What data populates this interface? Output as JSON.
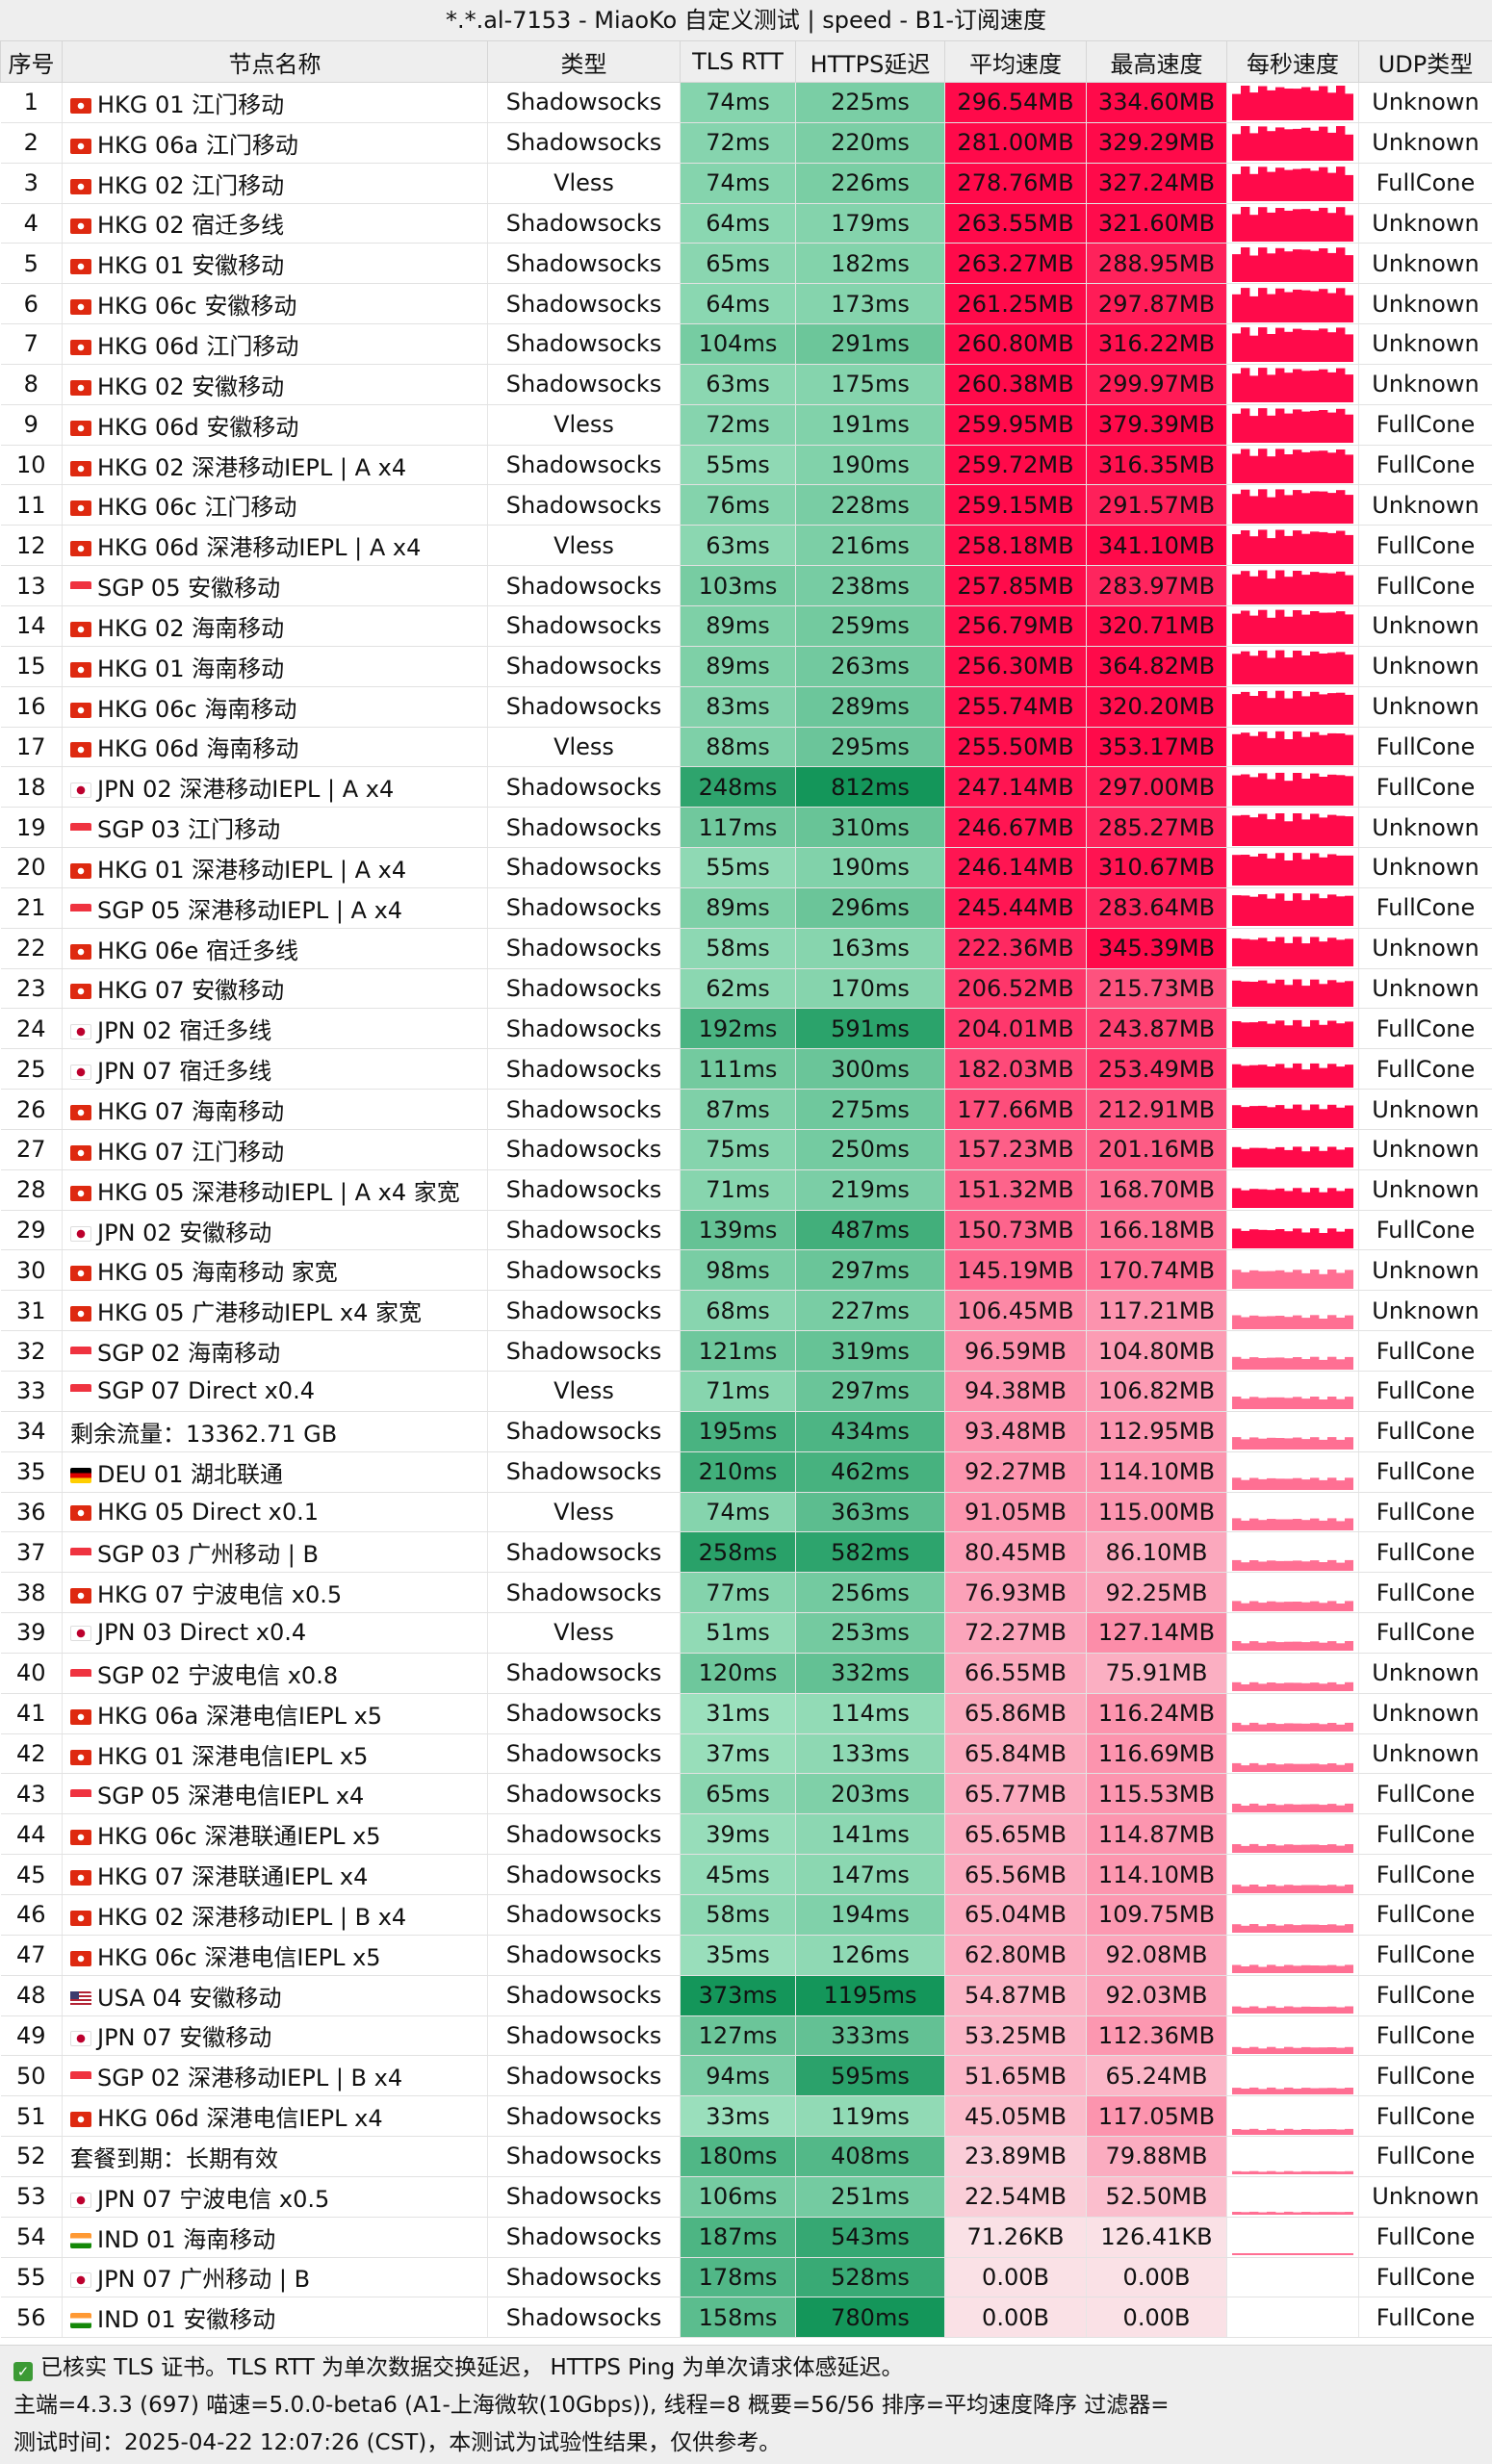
{
  "title": "*.*.al-7153 - MiaoKo 自定义测试 | speed - B1-订阅速度",
  "headers": [
    "序号",
    "节点名称",
    "类型",
    "TLS RTT",
    "HTTPS延迟",
    "平均速度",
    "最高速度",
    "每秒速度",
    "UDP类型"
  ],
  "rows": [
    {
      "idx": "1",
      "flag": "hk",
      "name": "HKG 01 江门移动",
      "type": "Shadowsocks",
      "tls": "74ms",
      "https": "225ms",
      "avg": "296.54MB",
      "max": "334.60MB",
      "udp": "Unknown"
    },
    {
      "idx": "2",
      "flag": "hk",
      "name": "HKG 06a 江门移动",
      "type": "Shadowsocks",
      "tls": "72ms",
      "https": "220ms",
      "avg": "281.00MB",
      "max": "329.29MB",
      "udp": "Unknown"
    },
    {
      "idx": "3",
      "flag": "hk",
      "name": "HKG 02 江门移动",
      "type": "Vless",
      "tls": "74ms",
      "https": "226ms",
      "avg": "278.76MB",
      "max": "327.24MB",
      "udp": "FullCone"
    },
    {
      "idx": "4",
      "flag": "hk",
      "name": "HKG 02 宿迁多线",
      "type": "Shadowsocks",
      "tls": "64ms",
      "https": "179ms",
      "avg": "263.55MB",
      "max": "321.60MB",
      "udp": "Unknown"
    },
    {
      "idx": "5",
      "flag": "hk",
      "name": "HKG 01 安徽移动",
      "type": "Shadowsocks",
      "tls": "65ms",
      "https": "182ms",
      "avg": "263.27MB",
      "max": "288.95MB",
      "udp": "Unknown"
    },
    {
      "idx": "6",
      "flag": "hk",
      "name": "HKG 06c 安徽移动",
      "type": "Shadowsocks",
      "tls": "64ms",
      "https": "173ms",
      "avg": "261.25MB",
      "max": "297.87MB",
      "udp": "Unknown"
    },
    {
      "idx": "7",
      "flag": "hk",
      "name": "HKG 06d 江门移动",
      "type": "Shadowsocks",
      "tls": "104ms",
      "https": "291ms",
      "avg": "260.80MB",
      "max": "316.22MB",
      "udp": "Unknown"
    },
    {
      "idx": "8",
      "flag": "hk",
      "name": "HKG 02 安徽移动",
      "type": "Shadowsocks",
      "tls": "63ms",
      "https": "175ms",
      "avg": "260.38MB",
      "max": "299.97MB",
      "udp": "Unknown"
    },
    {
      "idx": "9",
      "flag": "hk",
      "name": "HKG 06d 安徽移动",
      "type": "Vless",
      "tls": "72ms",
      "https": "191ms",
      "avg": "259.95MB",
      "max": "379.39MB",
      "udp": "FullCone"
    },
    {
      "idx": "10",
      "flag": "hk",
      "name": "HKG 02 深港移动IEPL | A x4",
      "type": "Shadowsocks",
      "tls": "55ms",
      "https": "190ms",
      "avg": "259.72MB",
      "max": "316.35MB",
      "udp": "FullCone"
    },
    {
      "idx": "11",
      "flag": "hk",
      "name": "HKG 06c 江门移动",
      "type": "Shadowsocks",
      "tls": "76ms",
      "https": "228ms",
      "avg": "259.15MB",
      "max": "291.57MB",
      "udp": "Unknown"
    },
    {
      "idx": "12",
      "flag": "hk",
      "name": "HKG 06d 深港移动IEPL | A x4",
      "type": "Vless",
      "tls": "63ms",
      "https": "216ms",
      "avg": "258.18MB",
      "max": "341.10MB",
      "udp": "FullCone"
    },
    {
      "idx": "13",
      "flag": "sg",
      "name": "SGP 05 安徽移动",
      "type": "Shadowsocks",
      "tls": "103ms",
      "https": "238ms",
      "avg": "257.85MB",
      "max": "283.97MB",
      "udp": "FullCone"
    },
    {
      "idx": "14",
      "flag": "hk",
      "name": "HKG 02 海南移动",
      "type": "Shadowsocks",
      "tls": "89ms",
      "https": "259ms",
      "avg": "256.79MB",
      "max": "320.71MB",
      "udp": "Unknown"
    },
    {
      "idx": "15",
      "flag": "hk",
      "name": "HKG 01 海南移动",
      "type": "Shadowsocks",
      "tls": "89ms",
      "https": "263ms",
      "avg": "256.30MB",
      "max": "364.82MB",
      "udp": "Unknown"
    },
    {
      "idx": "16",
      "flag": "hk",
      "name": "HKG 06c 海南移动",
      "type": "Shadowsocks",
      "tls": "83ms",
      "https": "289ms",
      "avg": "255.74MB",
      "max": "320.20MB",
      "udp": "Unknown"
    },
    {
      "idx": "17",
      "flag": "hk",
      "name": "HKG 06d 海南移动",
      "type": "Vless",
      "tls": "88ms",
      "https": "295ms",
      "avg": "255.50MB",
      "max": "353.17MB",
      "udp": "FullCone"
    },
    {
      "idx": "18",
      "flag": "jp",
      "name": "JPN 02 深港移动IEPL | A x4",
      "type": "Shadowsocks",
      "tls": "248ms",
      "https": "812ms",
      "avg": "247.14MB",
      "max": "297.00MB",
      "udp": "FullCone"
    },
    {
      "idx": "19",
      "flag": "sg",
      "name": "SGP 03 江门移动",
      "type": "Shadowsocks",
      "tls": "117ms",
      "https": "310ms",
      "avg": "246.67MB",
      "max": "285.27MB",
      "udp": "Unknown"
    },
    {
      "idx": "20",
      "flag": "hk",
      "name": "HKG 01 深港移动IEPL | A x4",
      "type": "Shadowsocks",
      "tls": "55ms",
      "https": "190ms",
      "avg": "246.14MB",
      "max": "310.67MB",
      "udp": "Unknown"
    },
    {
      "idx": "21",
      "flag": "sg",
      "name": "SGP 05 深港移动IEPL | A x4",
      "type": "Shadowsocks",
      "tls": "89ms",
      "https": "296ms",
      "avg": "245.44MB",
      "max": "283.64MB",
      "udp": "FullCone"
    },
    {
      "idx": "22",
      "flag": "hk",
      "name": "HKG 06e 宿迁多线",
      "type": "Shadowsocks",
      "tls": "58ms",
      "https": "163ms",
      "avg": "222.36MB",
      "max": "345.39MB",
      "udp": "Unknown"
    },
    {
      "idx": "23",
      "flag": "hk",
      "name": "HKG 07 安徽移动",
      "type": "Shadowsocks",
      "tls": "62ms",
      "https": "170ms",
      "avg": "206.52MB",
      "max": "215.73MB",
      "udp": "Unknown"
    },
    {
      "idx": "24",
      "flag": "jp",
      "name": "JPN 02 宿迁多线",
      "type": "Shadowsocks",
      "tls": "192ms",
      "https": "591ms",
      "avg": "204.01MB",
      "max": "243.87MB",
      "udp": "FullCone"
    },
    {
      "idx": "25",
      "flag": "jp",
      "name": "JPN 07 宿迁多线",
      "type": "Shadowsocks",
      "tls": "111ms",
      "https": "300ms",
      "avg": "182.03MB",
      "max": "253.49MB",
      "udp": "FullCone"
    },
    {
      "idx": "26",
      "flag": "hk",
      "name": "HKG 07 海南移动",
      "type": "Shadowsocks",
      "tls": "87ms",
      "https": "275ms",
      "avg": "177.66MB",
      "max": "212.91MB",
      "udp": "Unknown"
    },
    {
      "idx": "27",
      "flag": "hk",
      "name": "HKG 07 江门移动",
      "type": "Shadowsocks",
      "tls": "75ms",
      "https": "250ms",
      "avg": "157.23MB",
      "max": "201.16MB",
      "udp": "Unknown"
    },
    {
      "idx": "28",
      "flag": "hk",
      "name": "HKG 05 深港移动IEPL | A x4 家宽",
      "type": "Shadowsocks",
      "tls": "71ms",
      "https": "219ms",
      "avg": "151.32MB",
      "max": "168.70MB",
      "udp": "Unknown"
    },
    {
      "idx": "29",
      "flag": "jp",
      "name": "JPN 02 安徽移动",
      "type": "Shadowsocks",
      "tls": "139ms",
      "https": "487ms",
      "avg": "150.73MB",
      "max": "166.18MB",
      "udp": "FullCone"
    },
    {
      "idx": "30",
      "flag": "hk",
      "name": "HKG 05 海南移动 家宽",
      "type": "Shadowsocks",
      "tls": "98ms",
      "https": "297ms",
      "avg": "145.19MB",
      "max": "170.74MB",
      "udp": "Unknown"
    },
    {
      "idx": "31",
      "flag": "hk",
      "name": "HKG 05 广港移动IEPL x4 家宽",
      "type": "Shadowsocks",
      "tls": "68ms",
      "https": "227ms",
      "avg": "106.45MB",
      "max": "117.21MB",
      "udp": "Unknown"
    },
    {
      "idx": "32",
      "flag": "sg",
      "name": "SGP 02 海南移动",
      "type": "Shadowsocks",
      "tls": "121ms",
      "https": "319ms",
      "avg": "96.59MB",
      "max": "104.80MB",
      "udp": "FullCone"
    },
    {
      "idx": "33",
      "flag": "sg",
      "name": "SGP 07 Direct x0.4",
      "type": "Vless",
      "tls": "71ms",
      "https": "297ms",
      "avg": "94.38MB",
      "max": "106.82MB",
      "udp": "FullCone"
    },
    {
      "idx": "34",
      "flag": "none",
      "name": "剩余流量：13362.71 GB",
      "type": "Shadowsocks",
      "tls": "195ms",
      "https": "434ms",
      "avg": "93.48MB",
      "max": "112.95MB",
      "udp": "FullCone"
    },
    {
      "idx": "35",
      "flag": "de",
      "name": "DEU 01 湖北联通",
      "type": "Shadowsocks",
      "tls": "210ms",
      "https": "462ms",
      "avg": "92.27MB",
      "max": "114.10MB",
      "udp": "FullCone"
    },
    {
      "idx": "36",
      "flag": "hk",
      "name": "HKG 05 Direct x0.1",
      "type": "Vless",
      "tls": "74ms",
      "https": "363ms",
      "avg": "91.05MB",
      "max": "115.00MB",
      "udp": "FullCone"
    },
    {
      "idx": "37",
      "flag": "sg",
      "name": "SGP 03 广州移动 | B",
      "type": "Shadowsocks",
      "tls": "258ms",
      "https": "582ms",
      "avg": "80.45MB",
      "max": "86.10MB",
      "udp": "FullCone"
    },
    {
      "idx": "38",
      "flag": "hk",
      "name": "HKG 07 宁波电信 x0.5",
      "type": "Shadowsocks",
      "tls": "77ms",
      "https": "256ms",
      "avg": "76.93MB",
      "max": "92.25MB",
      "udp": "FullCone"
    },
    {
      "idx": "39",
      "flag": "jp",
      "name": "JPN 03 Direct x0.4",
      "type": "Vless",
      "tls": "51ms",
      "https": "253ms",
      "avg": "72.27MB",
      "max": "127.14MB",
      "udp": "FullCone"
    },
    {
      "idx": "40",
      "flag": "sg",
      "name": "SGP 02 宁波电信 x0.8",
      "type": "Shadowsocks",
      "tls": "120ms",
      "https": "332ms",
      "avg": "66.55MB",
      "max": "75.91MB",
      "udp": "Unknown"
    },
    {
      "idx": "41",
      "flag": "hk",
      "name": "HKG 06a 深港电信IEPL x5",
      "type": "Shadowsocks",
      "tls": "31ms",
      "https": "114ms",
      "avg": "65.86MB",
      "max": "116.24MB",
      "udp": "Unknown"
    },
    {
      "idx": "42",
      "flag": "hk",
      "name": "HKG 01 深港电信IEPL x5",
      "type": "Shadowsocks",
      "tls": "37ms",
      "https": "133ms",
      "avg": "65.84MB",
      "max": "116.69MB",
      "udp": "Unknown"
    },
    {
      "idx": "43",
      "flag": "sg",
      "name": "SGP 05 深港电信IEPL x4",
      "type": "Shadowsocks",
      "tls": "65ms",
      "https": "203ms",
      "avg": "65.77MB",
      "max": "115.53MB",
      "udp": "FullCone"
    },
    {
      "idx": "44",
      "flag": "hk",
      "name": "HKG 06c 深港联通IEPL x5",
      "type": "Shadowsocks",
      "tls": "39ms",
      "https": "141ms",
      "avg": "65.65MB",
      "max": "114.87MB",
      "udp": "FullCone"
    },
    {
      "idx": "45",
      "flag": "hk",
      "name": "HKG 07 深港联通IEPL x4",
      "type": "Shadowsocks",
      "tls": "45ms",
      "https": "147ms",
      "avg": "65.56MB",
      "max": "114.10MB",
      "udp": "FullCone"
    },
    {
      "idx": "46",
      "flag": "hk",
      "name": "HKG 02 深港移动IEPL | B x4",
      "type": "Shadowsocks",
      "tls": "58ms",
      "https": "194ms",
      "avg": "65.04MB",
      "max": "109.75MB",
      "udp": "FullCone"
    },
    {
      "idx": "47",
      "flag": "hk",
      "name": "HKG 06c 深港电信IEPL x5",
      "type": "Shadowsocks",
      "tls": "35ms",
      "https": "126ms",
      "avg": "62.80MB",
      "max": "92.08MB",
      "udp": "FullCone"
    },
    {
      "idx": "48",
      "flag": "us",
      "name": "USA 04 安徽移动",
      "type": "Shadowsocks",
      "tls": "373ms",
      "https": "1195ms",
      "avg": "54.87MB",
      "max": "92.03MB",
      "udp": "FullCone"
    },
    {
      "idx": "49",
      "flag": "jp",
      "name": "JPN 07 安徽移动",
      "type": "Shadowsocks",
      "tls": "127ms",
      "https": "333ms",
      "avg": "53.25MB",
      "max": "112.36MB",
      "udp": "FullCone"
    },
    {
      "idx": "50",
      "flag": "sg",
      "name": "SGP 02 深港移动IEPL | B x4",
      "type": "Shadowsocks",
      "tls": "94ms",
      "https": "595ms",
      "avg": "51.65MB",
      "max": "65.24MB",
      "udp": "FullCone"
    },
    {
      "idx": "51",
      "flag": "hk",
      "name": "HKG 06d 深港电信IEPL x4",
      "type": "Shadowsocks",
      "tls": "33ms",
      "https": "119ms",
      "avg": "45.05MB",
      "max": "117.05MB",
      "udp": "FullCone"
    },
    {
      "idx": "52",
      "flag": "none",
      "name": "套餐到期：长期有效",
      "type": "Shadowsocks",
      "tls": "180ms",
      "https": "408ms",
      "avg": "23.89MB",
      "max": "79.88MB",
      "udp": "FullCone"
    },
    {
      "idx": "53",
      "flag": "jp",
      "name": "JPN 07 宁波电信 x0.5",
      "type": "Shadowsocks",
      "tls": "106ms",
      "https": "251ms",
      "avg": "22.54MB",
      "max": "52.50MB",
      "udp": "Unknown"
    },
    {
      "idx": "54",
      "flag": "in",
      "name": "IND 01 海南移动",
      "type": "Shadowsocks",
      "tls": "187ms",
      "https": "543ms",
      "avg": "71.26KB",
      "max": "126.41KB",
      "udp": "FullCone"
    },
    {
      "idx": "55",
      "flag": "jp",
      "name": "JPN 07 广州移动 | B",
      "type": "Shadowsocks",
      "tls": "178ms",
      "https": "528ms",
      "avg": "0.00B",
      "max": "0.00B",
      "udp": "FullCone"
    },
    {
      "idx": "56",
      "flag": "in",
      "name": "IND 01 安徽移动",
      "type": "Shadowsocks",
      "tls": "158ms",
      "https": "780ms",
      "avg": "0.00B",
      "max": "0.00B",
      "udp": "FullCone"
    }
  ],
  "footer": {
    "line1": "已核实 TLS 证书。TLS RTT 为单次数据交换延迟， HTTPS Ping 为单次请求体感延迟。",
    "line2": "主端=4.3.3 (697) 喵速=5.0.0-beta6 (A1-上海微软(10Gbps)), 线程=8 概要=56/56 排序=平均速度降序 过滤器=",
    "line3": "测试时间：2025-04-22 12:07:26 (CST)，本测试为试验性结果，仅供参考。"
  },
  "colors": {
    "header_bg": "#eeeeee",
    "latency_green": "#1a9e5c",
    "speed_red": "#ff0a4a",
    "check_green": "#3c9a35"
  },
  "icons": {
    "check": "check-icon",
    "flag": "flag-icon"
  }
}
